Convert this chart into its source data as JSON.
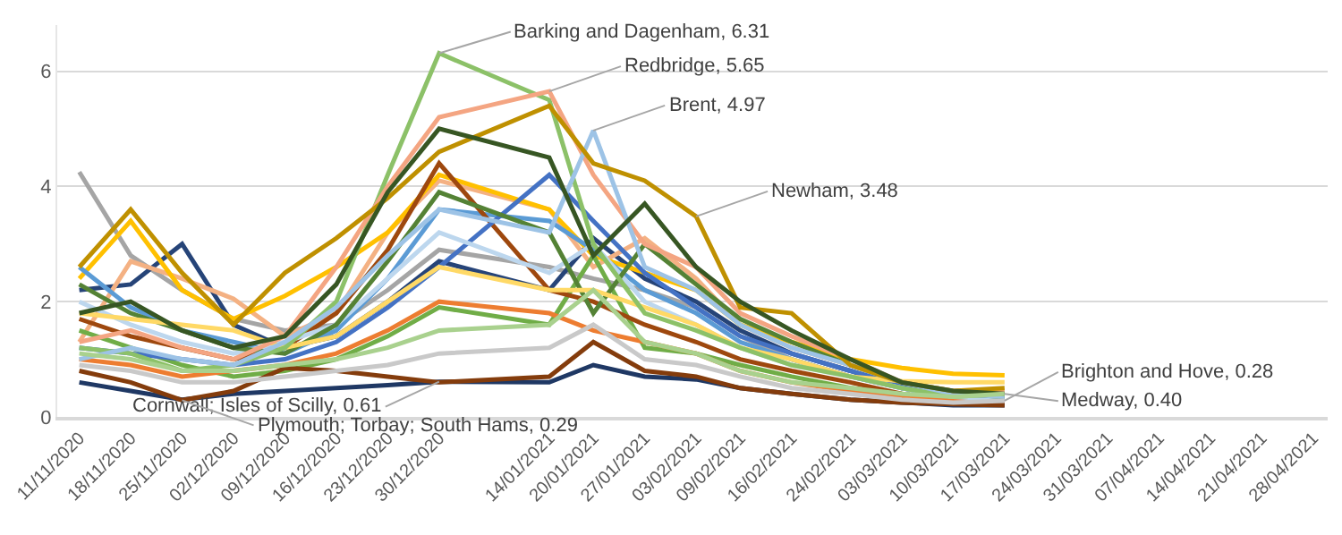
{
  "chart_data": {
    "type": "line",
    "x": [
      "2020-11-11",
      "2020-11-18",
      "2020-11-25",
      "2020-12-02",
      "2020-12-09",
      "2020-12-16",
      "2020-12-23",
      "2020-12-30",
      "2021-01-14",
      "2021-01-20",
      "2021-01-27",
      "2021-02-03",
      "2021-02-09",
      "2021-02-16",
      "2021-02-24",
      "2021-03-03",
      "2021-03-10",
      "2021-03-17"
    ],
    "series": [
      {
        "color": "#a5a5a5",
        "values": [
          4.25,
          2.8,
          2.2,
          1.7,
          1.5,
          1.6,
          2.2,
          2.9,
          2.6,
          2.4,
          2.2,
          1.9,
          1.4,
          1.0,
          0.7,
          0.5,
          0.35,
          0.3
        ]
      },
      {
        "color": "#264478",
        "values": [
          2.2,
          2.3,
          3.0,
          1.6,
          1.2,
          1.4,
          2.0,
          2.7,
          2.2,
          3.1,
          2.4,
          2.0,
          1.5,
          1.1,
          0.8,
          0.5,
          0.35,
          0.3
        ]
      },
      {
        "color": "#f4b183",
        "values": [
          1.3,
          2.7,
          2.4,
          2.05,
          1.4,
          1.8,
          3.2,
          4.1,
          3.6,
          2.6,
          3.1,
          2.4,
          1.6,
          1.2,
          0.9,
          0.6,
          0.4,
          0.35
        ]
      },
      {
        "color": "#ffc000",
        "values": [
          2.4,
          3.4,
          2.2,
          1.7,
          2.1,
          2.6,
          3.2,
          4.2,
          3.6,
          2.8,
          2.5,
          2.2,
          1.6,
          1.3,
          1.0,
          0.85,
          0.75,
          0.72
        ]
      },
      {
        "color": "#5b9bd5",
        "values": [
          2.6,
          1.9,
          1.5,
          1.3,
          1.1,
          1.5,
          2.4,
          3.6,
          3.4,
          2.9,
          2.2,
          1.8,
          1.3,
          1.0,
          0.7,
          0.5,
          0.35,
          0.3
        ]
      },
      {
        "color": "#70ad47",
        "values": [
          1.5,
          1.2,
          0.9,
          0.7,
          0.8,
          1.0,
          1.4,
          1.9,
          1.6,
          2.8,
          1.2,
          1.1,
          0.9,
          0.7,
          0.5,
          0.4,
          0.3,
          0.3
        ]
      },
      {
        "color": "#9e480e",
        "values": [
          1.7,
          1.4,
          1.2,
          1.0,
          1.2,
          1.8,
          2.9,
          4.4,
          2.2,
          2.0,
          1.6,
          1.3,
          1.0,
          0.8,
          0.6,
          0.4,
          0.3,
          0.25
        ]
      },
      {
        "color": "#ed7d31",
        "values": [
          1.0,
          0.9,
          0.7,
          0.8,
          0.9,
          1.1,
          1.5,
          2.0,
          1.8,
          1.5,
          1.3,
          1.1,
          0.8,
          0.6,
          0.45,
          0.35,
          0.3,
          0.25
        ]
      },
      {
        "color": "#4472c4",
        "values": [
          1.2,
          1.1,
          1.0,
          0.9,
          1.0,
          1.3,
          1.9,
          2.6,
          4.2,
          3.4,
          2.5,
          1.9,
          1.4,
          1.1,
          0.8,
          0.55,
          0.4,
          0.35
        ]
      },
      {
        "color": "#bdd7ee",
        "values": [
          2.0,
          1.6,
          1.3,
          1.1,
          1.3,
          1.6,
          2.4,
          3.2,
          2.5,
          3.0,
          2.0,
          1.6,
          1.2,
          0.9,
          0.7,
          0.5,
          0.35,
          0.3
        ]
      },
      {
        "color": "#548235",
        "values": [
          2.3,
          1.8,
          1.5,
          1.2,
          1.1,
          1.6,
          2.7,
          3.9,
          3.2,
          1.8,
          3.0,
          2.3,
          1.7,
          1.3,
          0.9,
          0.6,
          0.4,
          0.35
        ]
      },
      {
        "color": "#ffd966",
        "values": [
          1.8,
          1.7,
          1.6,
          1.5,
          1.2,
          1.4,
          2.0,
          2.6,
          2.2,
          2.2,
          1.9,
          1.6,
          1.2,
          1.0,
          0.7,
          0.62,
          0.6,
          0.6
        ]
      },
      {
        "color": "#8cc168",
        "values": [
          1.2,
          1.1,
          0.8,
          0.9,
          1.2,
          2.0,
          4.2,
          6.31,
          5.5,
          3.0,
          1.8,
          1.5,
          1.2,
          0.9,
          0.7,
          0.5,
          0.35,
          0.4
        ]
      },
      {
        "color": "#f4a582",
        "values": [
          1.3,
          1.5,
          1.2,
          1.0,
          1.4,
          2.6,
          4.0,
          5.2,
          5.65,
          4.2,
          3.0,
          2.6,
          1.8,
          1.4,
          1.0,
          0.6,
          0.45,
          0.45
        ]
      },
      {
        "color": "#9dc3e6",
        "values": [
          1.0,
          1.2,
          1.0,
          0.9,
          1.3,
          1.9,
          2.8,
          3.6,
          3.2,
          4.97,
          2.6,
          2.2,
          1.6,
          1.2,
          0.9,
          0.6,
          0.4,
          0.35
        ]
      },
      {
        "color": "#bf9000",
        "values": [
          2.6,
          3.6,
          2.5,
          1.6,
          2.5,
          3.1,
          3.8,
          4.6,
          5.4,
          4.4,
          4.1,
          3.48,
          1.9,
          1.8,
          0.9,
          0.6,
          0.45,
          0.5
        ]
      },
      {
        "color": "#375623",
        "values": [
          1.8,
          2.0,
          1.5,
          1.2,
          1.4,
          2.3,
          3.9,
          5.0,
          4.5,
          2.8,
          3.7,
          2.6,
          2.0,
          1.5,
          1.0,
          0.6,
          0.45,
          0.4
        ]
      },
      {
        "color": "#1f3864",
        "values": [
          0.6,
          0.45,
          0.3,
          0.4,
          0.45,
          0.5,
          0.55,
          0.61,
          0.6,
          0.9,
          0.7,
          0.65,
          0.5,
          0.4,
          0.3,
          0.25,
          0.2,
          0.2
        ]
      },
      {
        "color": "#843c0c",
        "values": [
          0.8,
          0.6,
          0.29,
          0.45,
          0.85,
          0.8,
          0.7,
          0.6,
          0.7,
          1.3,
          0.8,
          0.7,
          0.5,
          0.4,
          0.3,
          0.25,
          0.22,
          0.2
        ]
      },
      {
        "color": "#c9c9c9",
        "values": [
          0.9,
          0.8,
          0.6,
          0.6,
          0.7,
          0.8,
          0.9,
          1.1,
          1.2,
          1.6,
          1.0,
          0.9,
          0.7,
          0.5,
          0.4,
          0.3,
          0.25,
          0.28
        ]
      },
      {
        "color": "#a9d18e",
        "values": [
          1.1,
          1.0,
          0.8,
          0.8,
          0.9,
          1.0,
          1.2,
          1.5,
          1.6,
          2.2,
          1.3,
          1.1,
          0.8,
          0.6,
          0.5,
          0.4,
          0.35,
          0.4
        ]
      }
    ],
    "ylim": [
      0,
      6.8
    ],
    "yticks": [
      0,
      2,
      4,
      6
    ],
    "xlim": [
      "2020-11-08",
      "2021-04-30"
    ],
    "xticks": [
      {
        "value": "2020-11-11",
        "label": "11/11/2020"
      },
      {
        "value": "2020-11-18",
        "label": "18/11/2020"
      },
      {
        "value": "2020-11-25",
        "label": "25/11/2020"
      },
      {
        "value": "2020-12-02",
        "label": "02/12/2020"
      },
      {
        "value": "2020-12-09",
        "label": "09/12/2020"
      },
      {
        "value": "2020-12-16",
        "label": "16/12/2020"
      },
      {
        "value": "2020-12-23",
        "label": "23/12/2020"
      },
      {
        "value": "2020-12-30",
        "label": "30/12/2020"
      },
      {
        "value": "2021-01-14",
        "label": "14/01/2021"
      },
      {
        "value": "2021-01-20",
        "label": "20/01/2021"
      },
      {
        "value": "2021-01-27",
        "label": "27/01/2021"
      },
      {
        "value": "2021-02-03",
        "label": "03/02/2021"
      },
      {
        "value": "2021-02-09",
        "label": "09/02/2021"
      },
      {
        "value": "2021-02-16",
        "label": "16/02/2021"
      },
      {
        "value": "2021-02-24",
        "label": "24/02/2021"
      },
      {
        "value": "2021-03-03",
        "label": "03/03/2021"
      },
      {
        "value": "2021-03-10",
        "label": "10/03/2021"
      },
      {
        "value": "2021-03-17",
        "label": "17/03/2021"
      },
      {
        "value": "2021-03-24",
        "label": "24/03/2021"
      },
      {
        "value": "2021-03-31",
        "label": "31/03/2021"
      },
      {
        "value": "2021-04-07",
        "label": "07/04/2021"
      },
      {
        "value": "2021-04-14",
        "label": "14/04/2021"
      },
      {
        "value": "2021-04-21",
        "label": "21/04/2021"
      },
      {
        "value": "2021-04-28",
        "label": "28/04/2021"
      }
    ],
    "grid": "y",
    "annotations": [
      {
        "text": "Barking and Dagenham, 6.31",
        "x": "2020-12-30",
        "y": 6.31
      },
      {
        "text": "Redbridge, 5.65",
        "x": "2021-01-14",
        "y": 5.65
      },
      {
        "text": "Brent, 4.97",
        "x": "2021-01-20",
        "y": 4.97
      },
      {
        "text": "Newham, 3.48",
        "x": "2021-02-03",
        "y": 3.48
      },
      {
        "text": "Cornwall; Isles of Scilly, 0.61",
        "x": "2020-12-30",
        "y": 0.61
      },
      {
        "text": "Plymouth; Torbay; South Hams, 0.29",
        "x": "2020-11-25",
        "y": 0.29
      },
      {
        "text": "Brighton and Hove, 0.28",
        "x": "2021-03-17",
        "y": 0.28
      },
      {
        "text": "Medway, 0.40",
        "x": "2021-03-17",
        "y": 0.4
      }
    ]
  }
}
